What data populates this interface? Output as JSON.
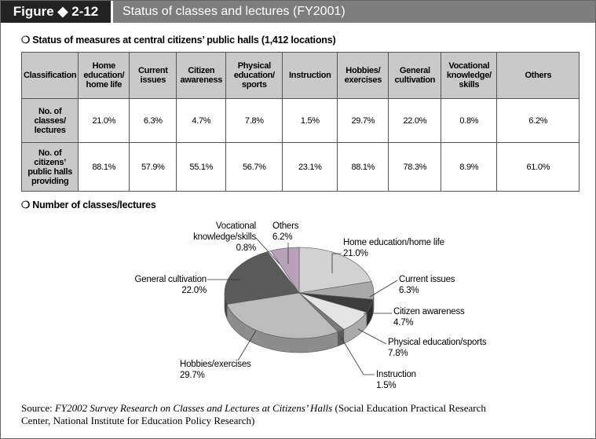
{
  "header": {
    "figure_label": "Figure ◆ 2-12",
    "title": "Status of classes and lectures (FY2001)"
  },
  "table": {
    "heading": "❍ Status of measures at central citizens’ public halls (1,412 locations)",
    "columns": [
      "Classification",
      "Home education/ home life",
      "Current issues",
      "Citizen awareness",
      "Physical education/ sports",
      "Instruction",
      "Hobbies/ exercises",
      "General cultivation",
      "Vocational knowledge/ skills",
      "Others"
    ],
    "rows": [
      [
        "No. of classes/ lectures",
        "21.0%",
        "6.3%",
        "4.7%",
        "7.8%",
        "1.5%",
        "29.7%",
        "22.0%",
        "0.8%",
        "6.2%"
      ],
      [
        "No. of citizens’ public halls providing",
        "88.1%",
        "57.9%",
        "55.1%",
        "56.7%",
        "23.1%",
        "88.1%",
        "78.3%",
        "8.9%",
        "61.0%"
      ]
    ]
  },
  "chart_data": {
    "type": "pie",
    "title": "❍ Number of classes/lectures",
    "categories": [
      "Home education/home life",
      "Current issues",
      "Citizen awareness",
      "Physical education/sports",
      "Instruction",
      "Hobbies/exercises",
      "General cultivation",
      "Vocational knowledge/skills",
      "Others"
    ],
    "values": [
      21.0,
      6.3,
      4.7,
      7.8,
      1.5,
      29.7,
      22.0,
      0.8,
      6.2
    ],
    "value_labels": [
      "21.0%",
      "6.3%",
      "4.7%",
      "7.8%",
      "1.5%",
      "29.7%",
      "22.0%",
      "0.8%",
      "6.2%"
    ],
    "colors": [
      "#d2d2d2",
      "#a9a9a9",
      "#3c3c3c",
      "#e4e4e4",
      "#7a7a7a",
      "#bcbcbc",
      "#5a5a5a",
      "#f4f4f4",
      "#b9a2b9"
    ]
  },
  "source": {
    "label": "Source:",
    "title": "FY2002 Survey Research on Classes and Lectures at Citizens’ Halls",
    "publisher": "(Social Education Practical Research Center, National Institute for Education Policy Research)"
  }
}
